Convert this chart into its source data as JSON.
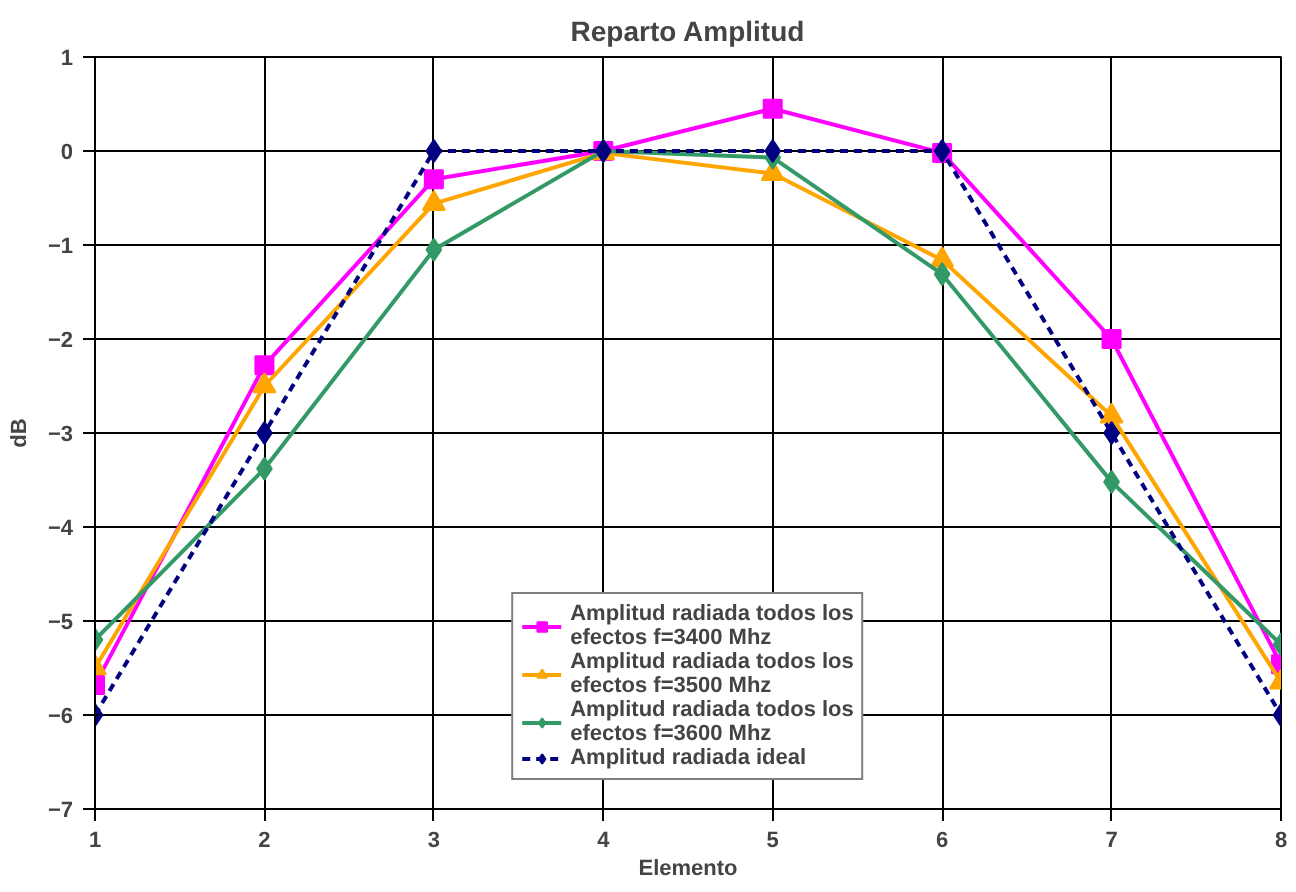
{
  "chart_data": {
    "type": "line",
    "title": "Reparto Amplitud",
    "xlabel": "Elemento",
    "ylabel": "dB",
    "x": [
      1,
      2,
      3,
      4,
      5,
      6,
      7,
      8
    ],
    "series": [
      {
        "name": "Amplitud radiada todos los efectos f=3400 Mhz",
        "color": "#ff00ff",
        "marker": "square",
        "line_style": "solid",
        "values": [
          -5.68,
          -2.28,
          -0.3,
          0,
          0.45,
          -0.02,
          -2.0,
          -5.46
        ]
      },
      {
        "name": "Amplitud radiada todos los efectos f=3500 Mhz",
        "color": "#ffa500",
        "marker": "triangle",
        "line_style": "solid",
        "values": [
          -5.5,
          -2.5,
          -0.56,
          -0.02,
          -0.24,
          -1.16,
          -2.82,
          -5.65
        ]
      },
      {
        "name": "Amplitud radiada todos los efectos f=3600 Mhz",
        "color": "#339966",
        "marker": "diamond",
        "line_style": "solid",
        "values": [
          -5.2,
          -3.38,
          -1.05,
          0,
          -0.07,
          -1.31,
          -3.52,
          -5.25
        ]
      },
      {
        "name": "Amplitud radiada ideal",
        "color": "#000080",
        "marker": "diamond",
        "line_style": "dashed",
        "values": [
          -6,
          -3,
          0,
          0,
          0,
          0,
          -3,
          -6
        ]
      }
    ],
    "xlim": [
      1,
      8
    ],
    "ylim": [
      -7,
      1
    ],
    "xticks": [
      1,
      2,
      3,
      4,
      5,
      6,
      7,
      8
    ],
    "yticks": [
      -7,
      -6,
      -5,
      -4,
      -3,
      -2,
      -1,
      0,
      1
    ],
    "grid": true,
    "legend": "bottom"
  }
}
